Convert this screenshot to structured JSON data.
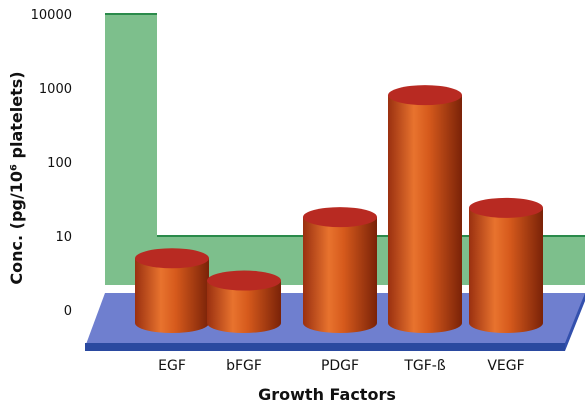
{
  "chart_data": {
    "type": "bar",
    "style": "3d-cylinder",
    "categories": [
      "EGF",
      "bFGF",
      "PDGF",
      "TGF-ß",
      "VEGF"
    ],
    "values": [
      5,
      2.5,
      18,
      800,
      24
    ],
    "ylabel": "Conc. (pg/10⁶ platelets)",
    "xlabel": "Growth Factors",
    "yscale": "log",
    "yticks": [
      "0",
      "10",
      "100",
      "1000",
      "10000"
    ],
    "grid": false,
    "legend": "none"
  },
  "colors": {
    "bar_body": "#d85a1e",
    "bar_top": "#b82a22",
    "back_wall": "#7dbf8c",
    "floor": "#6f7fcf",
    "floor_edge": "#2a49a0"
  }
}
